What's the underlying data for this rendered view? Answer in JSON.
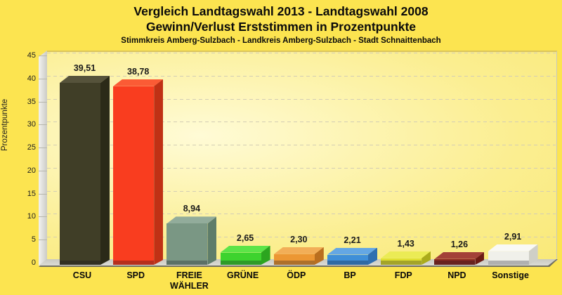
{
  "header": {
    "title_line1": "Vergleich Landtagswahl 2013 - Landtagswahl 2008",
    "title_line2": "Gewinn/Verlust Erststimmen in Prozentpunkte",
    "subtitle": "Stimmkreis Amberg-Sulzbach - Landkreis Amberg-Sulzbach - Stadt Schnaittenbach"
  },
  "chart_data": {
    "type": "bar",
    "style": "3d-column",
    "title": "Vergleich Landtagswahl 2013 - Landtagswahl 2008 — Gewinn/Verlust Erststimmen in Prozentpunkte",
    "subtitle": "Stimmkreis Amberg-Sulzbach - Landkreis Amberg-Sulzbach - Stadt Schnaittenbach",
    "xlabel": "",
    "ylabel": "Prozentpunkte",
    "ylim": [
      0,
      45
    ],
    "yticks": [
      0,
      5,
      10,
      15,
      20,
      25,
      30,
      35,
      40,
      45
    ],
    "grid": "horizontal-dashed",
    "legend": "none",
    "categories": [
      "CSU",
      "SPD",
      "FREIE WÄHLER",
      "GRÜNE",
      "ÖDP",
      "BP",
      "FDP",
      "NPD",
      "Sonstige"
    ],
    "values": [
      39.51,
      38.78,
      8.94,
      2.65,
      2.3,
      2.21,
      1.43,
      1.26,
      2.91
    ],
    "value_labels": [
      "39,51",
      "38,78",
      "8,94",
      "2,65",
      "2,30",
      "2,21",
      "1,43",
      "1,26",
      "2,91"
    ],
    "bar_colors": [
      {
        "party": "CSU",
        "front": "#403E27",
        "top": "#56533B",
        "side": "#2B2A18"
      },
      {
        "party": "SPD",
        "front": "#F93D1F",
        "top": "#FB5B35",
        "side": "#C03115"
      },
      {
        "party": "FREIE WÄHLER",
        "front": "#7A9784",
        "top": "#92AC9B",
        "side": "#5E7D6A"
      },
      {
        "party": "GRÜNE",
        "front": "#3DD32E",
        "top": "#5CE448",
        "side": "#2CA51F"
      },
      {
        "party": "ÖDP",
        "front": "#EC9733",
        "top": "#F2AE57",
        "side": "#BA6F1F"
      },
      {
        "party": "BP",
        "front": "#3F8FD8",
        "top": "#64A7E4",
        "side": "#2F6FB0"
      },
      {
        "party": "FDP",
        "front": "#DFDF30",
        "top": "#EBEB55",
        "side": "#ABAB1B"
      },
      {
        "party": "NPD",
        "front": "#8C2B22",
        "top": "#A34138",
        "side": "#6C1B14"
      },
      {
        "party": "Sonstige",
        "front": "#F0F0EA",
        "top": "#F9F9F5",
        "side": "#CFCFC7"
      }
    ],
    "colors": {
      "page_background": "#FCE450",
      "plot_gradient_light": "#FFFBD6",
      "plot_gradient_dark": "#F7E35C",
      "wall_gray": "#DDDDD9",
      "gridline": "#D3CDB4",
      "text": "#0A0A0A"
    }
  }
}
